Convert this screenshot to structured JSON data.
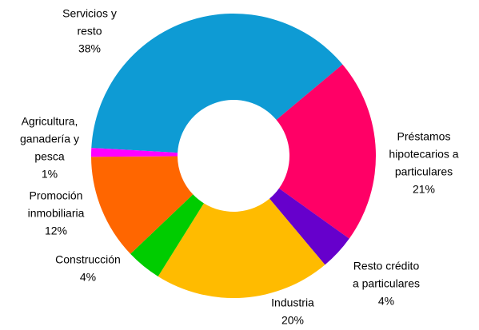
{
  "chart_data": {
    "type": "donut",
    "categories": [
      [
        "Servicios y",
        "resto"
      ],
      [
        "Préstamos",
        "hipotecarios a",
        "particulares"
      ],
      [
        "Resto crédito",
        "a particulares"
      ],
      [
        "Industria"
      ],
      [
        "Construcción"
      ],
      [
        "Promoción",
        "inmobiliaria"
      ],
      [
        "Agricultura,",
        "ganadería y",
        "pesca"
      ]
    ],
    "values": [
      38,
      21,
      4,
      20,
      4,
      12,
      1
    ],
    "value_labels": [
      "38%",
      "21%",
      "4%",
      "20%",
      "4%",
      "12%",
      "1%"
    ],
    "colors": [
      "#0e9bd4",
      "#ff0066",
      "#6600cc",
      "#ffbb00",
      "#00cc00",
      "#ff6600",
      "#ff00ff"
    ]
  }
}
